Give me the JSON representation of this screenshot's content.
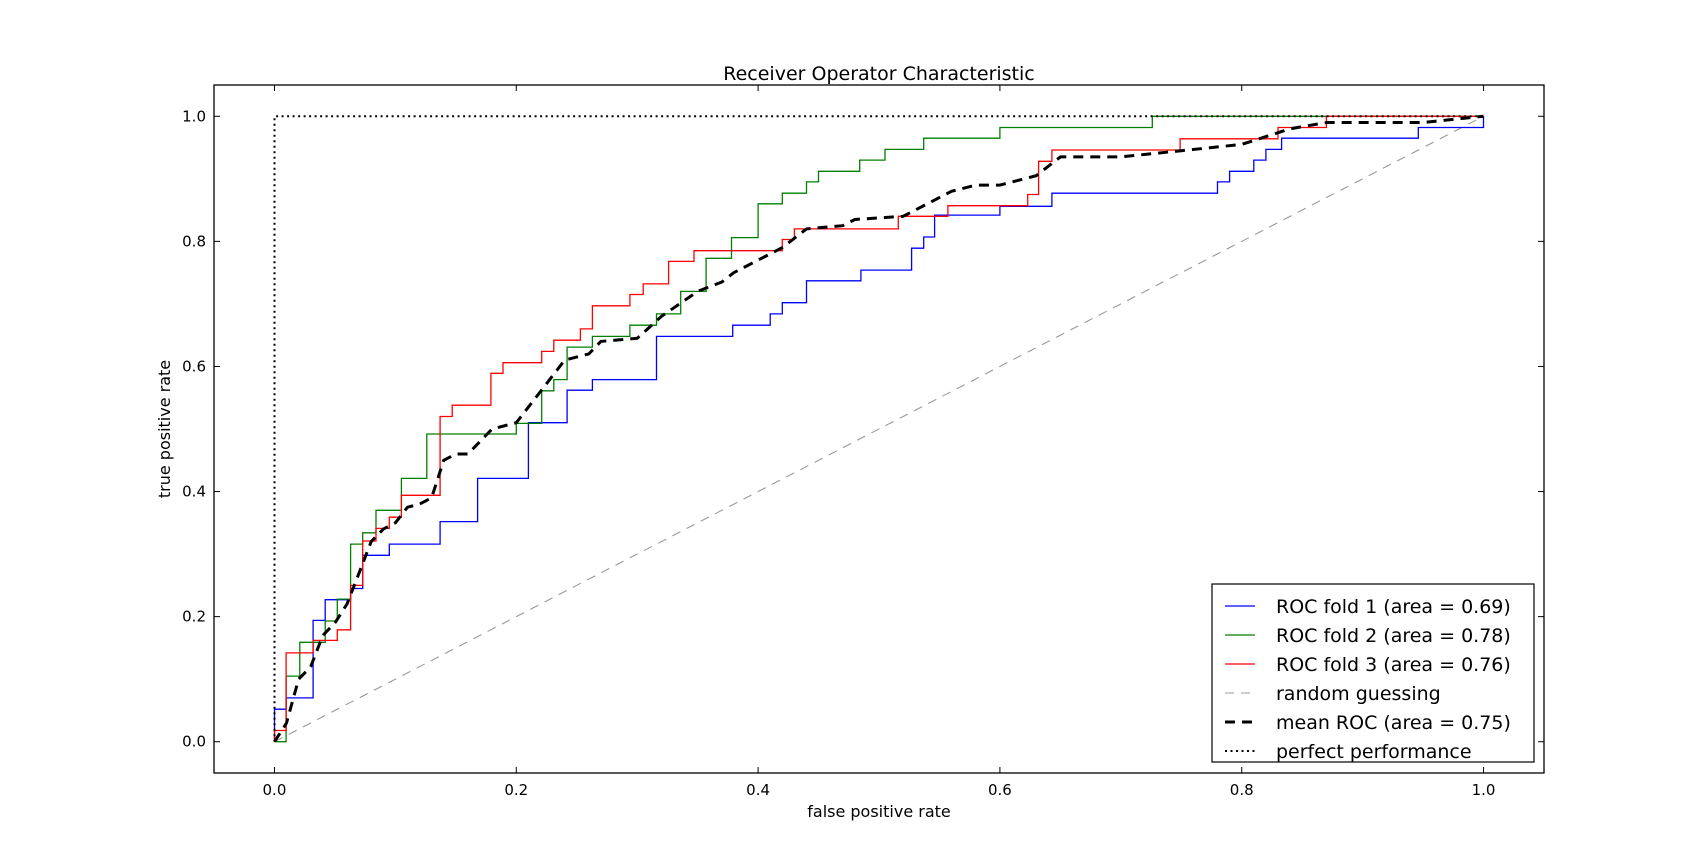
{
  "chart_data": {
    "type": "line",
    "title": "Receiver Operator Characteristic",
    "xlabel": "false positive rate",
    "ylabel": "true positive rate",
    "xlim": [
      -0.05,
      1.05
    ],
    "ylim": [
      -0.05,
      1.05
    ],
    "xticks": [
      "0.0",
      "0.2",
      "0.4",
      "0.6",
      "0.8",
      "1.0"
    ],
    "yticks": [
      "0.0",
      "0.2",
      "0.4",
      "0.6",
      "0.8",
      "1.0"
    ],
    "grid": false,
    "legend_position": "lower-right",
    "series": [
      {
        "name": "ROC fold 1 (area = 0.69)",
        "color": "#0000ff",
        "style": "solid",
        "step": true,
        "points": [
          [
            0,
            0
          ],
          [
            0,
            0.052
          ],
          [
            0.0096,
            0.052
          ],
          [
            0.0096,
            0.07
          ],
          [
            0.032,
            0.07
          ],
          [
            0.032,
            0.194
          ],
          [
            0.042,
            0.194
          ],
          [
            0.042,
            0.227
          ],
          [
            0.063,
            0.227
          ],
          [
            0.063,
            0.245
          ],
          [
            0.073,
            0.245
          ],
          [
            0.073,
            0.298
          ],
          [
            0.095,
            0.298
          ],
          [
            0.095,
            0.316
          ],
          [
            0.137,
            0.316
          ],
          [
            0.137,
            0.352
          ],
          [
            0.168,
            0.352
          ],
          [
            0.168,
            0.421
          ],
          [
            0.21,
            0.421
          ],
          [
            0.21,
            0.51
          ],
          [
            0.242,
            0.51
          ],
          [
            0.242,
            0.562
          ],
          [
            0.263,
            0.562
          ],
          [
            0.263,
            0.579
          ],
          [
            0.316,
            0.579
          ],
          [
            0.316,
            0.648
          ],
          [
            0.379,
            0.648
          ],
          [
            0.379,
            0.666
          ],
          [
            0.41,
            0.666
          ],
          [
            0.41,
            0.684
          ],
          [
            0.42,
            0.684
          ],
          [
            0.42,
            0.702
          ],
          [
            0.44,
            0.702
          ],
          [
            0.44,
            0.737
          ],
          [
            0.485,
            0.737
          ],
          [
            0.485,
            0.754
          ],
          [
            0.527,
            0.754
          ],
          [
            0.527,
            0.789
          ],
          [
            0.537,
            0.789
          ],
          [
            0.537,
            0.807
          ],
          [
            0.546,
            0.807
          ],
          [
            0.546,
            0.842
          ],
          [
            0.6,
            0.842
          ],
          [
            0.6,
            0.856
          ],
          [
            0.643,
            0.856
          ],
          [
            0.643,
            0.877
          ],
          [
            0.78,
            0.877
          ],
          [
            0.78,
            0.895
          ],
          [
            0.79,
            0.895
          ],
          [
            0.79,
            0.912
          ],
          [
            0.81,
            0.912
          ],
          [
            0.81,
            0.93
          ],
          [
            0.82,
            0.93
          ],
          [
            0.82,
            0.947
          ],
          [
            0.833,
            0.947
          ],
          [
            0.833,
            0.965
          ],
          [
            0.946,
            0.965
          ],
          [
            0.946,
            0.982
          ],
          [
            1,
            0.982
          ],
          [
            1,
            1
          ]
        ]
      },
      {
        "name": "ROC fold 2 (area = 0.78)",
        "color": "#008000",
        "style": "solid",
        "step": true,
        "points": [
          [
            0,
            0
          ],
          [
            0.0096,
            0
          ],
          [
            0.0096,
            0.105
          ],
          [
            0.021,
            0.105
          ],
          [
            0.021,
            0.159
          ],
          [
            0.042,
            0.159
          ],
          [
            0.042,
            0.193
          ],
          [
            0.052,
            0.193
          ],
          [
            0.052,
            0.228
          ],
          [
            0.063,
            0.228
          ],
          [
            0.063,
            0.316
          ],
          [
            0.073,
            0.316
          ],
          [
            0.073,
            0.334
          ],
          [
            0.084,
            0.334
          ],
          [
            0.084,
            0.37
          ],
          [
            0.105,
            0.37
          ],
          [
            0.105,
            0.421
          ],
          [
            0.126,
            0.421
          ],
          [
            0.126,
            0.492
          ],
          [
            0.2,
            0.492
          ],
          [
            0.2,
            0.509
          ],
          [
            0.221,
            0.509
          ],
          [
            0.221,
            0.561
          ],
          [
            0.231,
            0.561
          ],
          [
            0.231,
            0.579
          ],
          [
            0.242,
            0.579
          ],
          [
            0.242,
            0.631
          ],
          [
            0.263,
            0.631
          ],
          [
            0.263,
            0.648
          ],
          [
            0.294,
            0.648
          ],
          [
            0.294,
            0.666
          ],
          [
            0.316,
            0.666
          ],
          [
            0.316,
            0.684
          ],
          [
            0.336,
            0.684
          ],
          [
            0.336,
            0.72
          ],
          [
            0.357,
            0.72
          ],
          [
            0.357,
            0.773
          ],
          [
            0.378,
            0.773
          ],
          [
            0.378,
            0.806
          ],
          [
            0.4,
            0.806
          ],
          [
            0.4,
            0.86
          ],
          [
            0.42,
            0.86
          ],
          [
            0.42,
            0.877
          ],
          [
            0.44,
            0.877
          ],
          [
            0.44,
            0.895
          ],
          [
            0.45,
            0.895
          ],
          [
            0.45,
            0.912
          ],
          [
            0.484,
            0.912
          ],
          [
            0.484,
            0.93
          ],
          [
            0.505,
            0.93
          ],
          [
            0.505,
            0.947
          ],
          [
            0.537,
            0.947
          ],
          [
            0.537,
            0.965
          ],
          [
            0.6,
            0.965
          ],
          [
            0.6,
            0.982
          ],
          [
            0.726,
            0.982
          ],
          [
            0.726,
            1
          ],
          [
            1,
            1
          ]
        ]
      },
      {
        "name": "ROC fold 3 (area = 0.76)",
        "color": "#ff0000",
        "style": "solid",
        "step": true,
        "points": [
          [
            0,
            0
          ],
          [
            0,
            0.018
          ],
          [
            0.0096,
            0.018
          ],
          [
            0.0096,
            0.142
          ],
          [
            0.032,
            0.142
          ],
          [
            0.032,
            0.162
          ],
          [
            0.052,
            0.162
          ],
          [
            0.052,
            0.179
          ],
          [
            0.063,
            0.179
          ],
          [
            0.063,
            0.25
          ],
          [
            0.073,
            0.25
          ],
          [
            0.073,
            0.321
          ],
          [
            0.084,
            0.321
          ],
          [
            0.084,
            0.341
          ],
          [
            0.095,
            0.341
          ],
          [
            0.095,
            0.359
          ],
          [
            0.105,
            0.359
          ],
          [
            0.105,
            0.394
          ],
          [
            0.137,
            0.394
          ],
          [
            0.137,
            0.52
          ],
          [
            0.147,
            0.52
          ],
          [
            0.147,
            0.538
          ],
          [
            0.179,
            0.538
          ],
          [
            0.179,
            0.589
          ],
          [
            0.189,
            0.589
          ],
          [
            0.189,
            0.606
          ],
          [
            0.221,
            0.606
          ],
          [
            0.221,
            0.624
          ],
          [
            0.231,
            0.624
          ],
          [
            0.231,
            0.642
          ],
          [
            0.253,
            0.642
          ],
          [
            0.253,
            0.66
          ],
          [
            0.263,
            0.66
          ],
          [
            0.263,
            0.697
          ],
          [
            0.294,
            0.697
          ],
          [
            0.294,
            0.715
          ],
          [
            0.305,
            0.715
          ],
          [
            0.305,
            0.732
          ],
          [
            0.326,
            0.732
          ],
          [
            0.326,
            0.768
          ],
          [
            0.347,
            0.768
          ],
          [
            0.347,
            0.785
          ],
          [
            0.42,
            0.785
          ],
          [
            0.42,
            0.803
          ],
          [
            0.43,
            0.803
          ],
          [
            0.43,
            0.82
          ],
          [
            0.516,
            0.82
          ],
          [
            0.516,
            0.84
          ],
          [
            0.557,
            0.84
          ],
          [
            0.557,
            0.857
          ],
          [
            0.623,
            0.857
          ],
          [
            0.623,
            0.875
          ],
          [
            0.632,
            0.875
          ],
          [
            0.632,
            0.928
          ],
          [
            0.643,
            0.928
          ],
          [
            0.643,
            0.946
          ],
          [
            0.749,
            0.946
          ],
          [
            0.749,
            0.964
          ],
          [
            0.83,
            0.964
          ],
          [
            0.83,
            0.982
          ],
          [
            0.87,
            0.982
          ],
          [
            0.87,
            1
          ],
          [
            1,
            1
          ]
        ]
      },
      {
        "name": "random guessing",
        "color": "#999999",
        "style": "dashed",
        "step": false,
        "points": [
          [
            0,
            0
          ],
          [
            1,
            1
          ]
        ]
      },
      {
        "name": "mean ROC (area = 0.75)",
        "color": "#000000",
        "style": "thick-dashed",
        "step": false,
        "points": [
          [
            0,
            0
          ],
          [
            0.01,
            0.03
          ],
          [
            0.02,
            0.1
          ],
          [
            0.03,
            0.12
          ],
          [
            0.04,
            0.17
          ],
          [
            0.05,
            0.19
          ],
          [
            0.06,
            0.22
          ],
          [
            0.07,
            0.27
          ],
          [
            0.08,
            0.32
          ],
          [
            0.09,
            0.34
          ],
          [
            0.1,
            0.35
          ],
          [
            0.11,
            0.375
          ],
          [
            0.12,
            0.38
          ],
          [
            0.13,
            0.39
          ],
          [
            0.14,
            0.45
          ],
          [
            0.15,
            0.46
          ],
          [
            0.16,
            0.46
          ],
          [
            0.18,
            0.5
          ],
          [
            0.2,
            0.51
          ],
          [
            0.22,
            0.56
          ],
          [
            0.24,
            0.61
          ],
          [
            0.26,
            0.62
          ],
          [
            0.27,
            0.64
          ],
          [
            0.3,
            0.645
          ],
          [
            0.32,
            0.68
          ],
          [
            0.35,
            0.72
          ],
          [
            0.37,
            0.735
          ],
          [
            0.38,
            0.75
          ],
          [
            0.4,
            0.77
          ],
          [
            0.42,
            0.79
          ],
          [
            0.44,
            0.82
          ],
          [
            0.47,
            0.825
          ],
          [
            0.48,
            0.835
          ],
          [
            0.52,
            0.84
          ],
          [
            0.56,
            0.88
          ],
          [
            0.58,
            0.89
          ],
          [
            0.6,
            0.89
          ],
          [
            0.63,
            0.905
          ],
          [
            0.65,
            0.935
          ],
          [
            0.7,
            0.935
          ],
          [
            0.75,
            0.945
          ],
          [
            0.8,
            0.955
          ],
          [
            0.84,
            0.98
          ],
          [
            0.87,
            0.99
          ],
          [
            0.95,
            0.99
          ],
          [
            1,
            1
          ]
        ]
      },
      {
        "name": "perfect performance",
        "color": "#000000",
        "style": "dotted",
        "step": false,
        "points": [
          [
            0,
            0
          ],
          [
            0,
            1
          ],
          [
            1,
            1
          ]
        ]
      }
    ]
  }
}
